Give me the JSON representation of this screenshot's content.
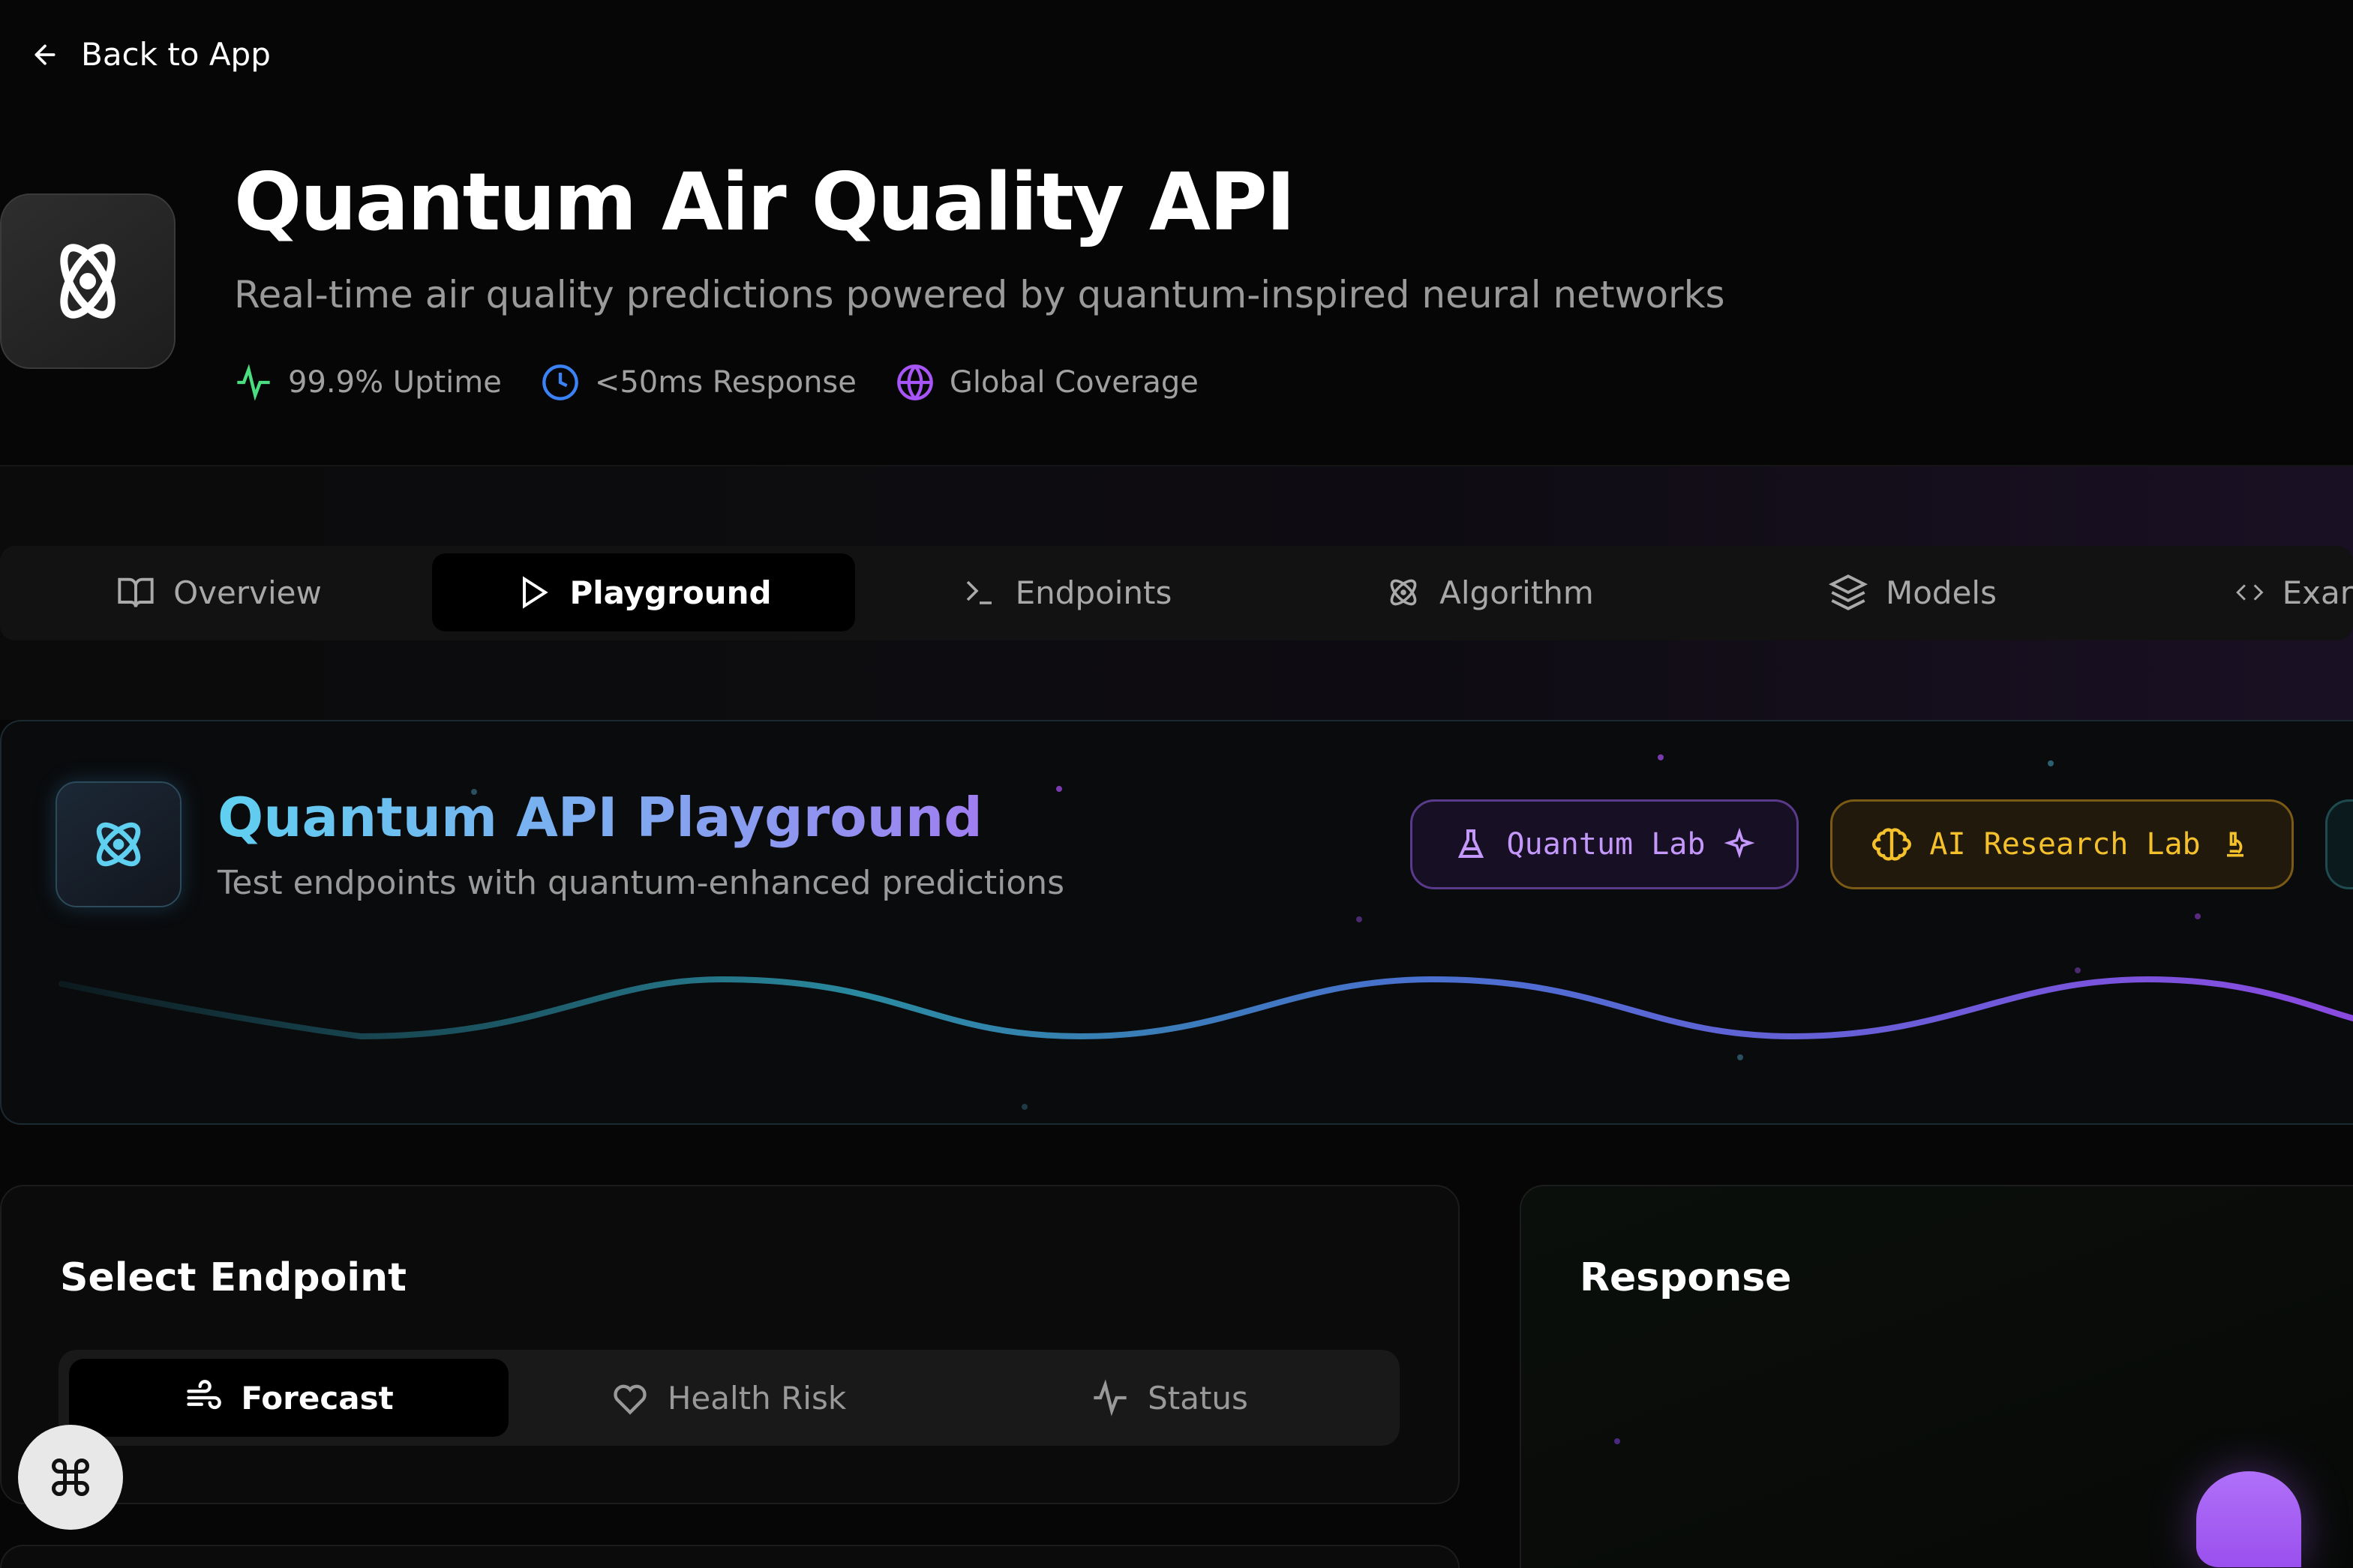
{
  "nav": {
    "back_label": "Back to App",
    "back_icon": "arrow-left-icon"
  },
  "header": {
    "title": "Quantum Air Quality API",
    "subtitle": "Real-time air quality predictions powered by quantum-inspired neural networks",
    "stats": [
      {
        "label": "99.9% Uptime",
        "icon": "activity-icon",
        "color": "#4ade80"
      },
      {
        "label": "<50ms Response",
        "icon": "clock-icon",
        "color": "#3b82f6"
      },
      {
        "label": "Global Coverage",
        "icon": "globe-icon",
        "color": "#a855f7"
      }
    ]
  },
  "tabs": [
    {
      "label": "Overview",
      "icon": "book-icon"
    },
    {
      "label": "Playground",
      "icon": "play-icon",
      "active": true
    },
    {
      "label": "Endpoints",
      "icon": "terminal-icon"
    },
    {
      "label": "Algorithm",
      "icon": "atom-icon"
    },
    {
      "label": "Models",
      "icon": "layers-icon"
    },
    {
      "label": "Exar",
      "icon": "code-icon"
    }
  ],
  "playground": {
    "title": "Quantum API Playground",
    "subtitle": "Test endpoints with quantum-enhanced predictions",
    "buttons": [
      {
        "label": "Quantum Lab",
        "icon": "flask-icon",
        "trail_icon": "sparkles-icon",
        "color": "#c497fa"
      },
      {
        "label": "AI Research Lab",
        "icon": "brain-icon",
        "trail_icon": "microscope-icon",
        "color": "#f4c12c"
      }
    ]
  },
  "endpoint": {
    "heading": "Select Endpoint",
    "options": [
      {
        "label": "Forecast",
        "icon": "wind-icon",
        "active": true
      },
      {
        "label": "Health Risk",
        "icon": "heart-icon"
      },
      {
        "label": "Status",
        "icon": "activity-icon"
      }
    ]
  },
  "response": {
    "heading": "Response"
  },
  "command_button": {
    "icon": "command-icon"
  }
}
